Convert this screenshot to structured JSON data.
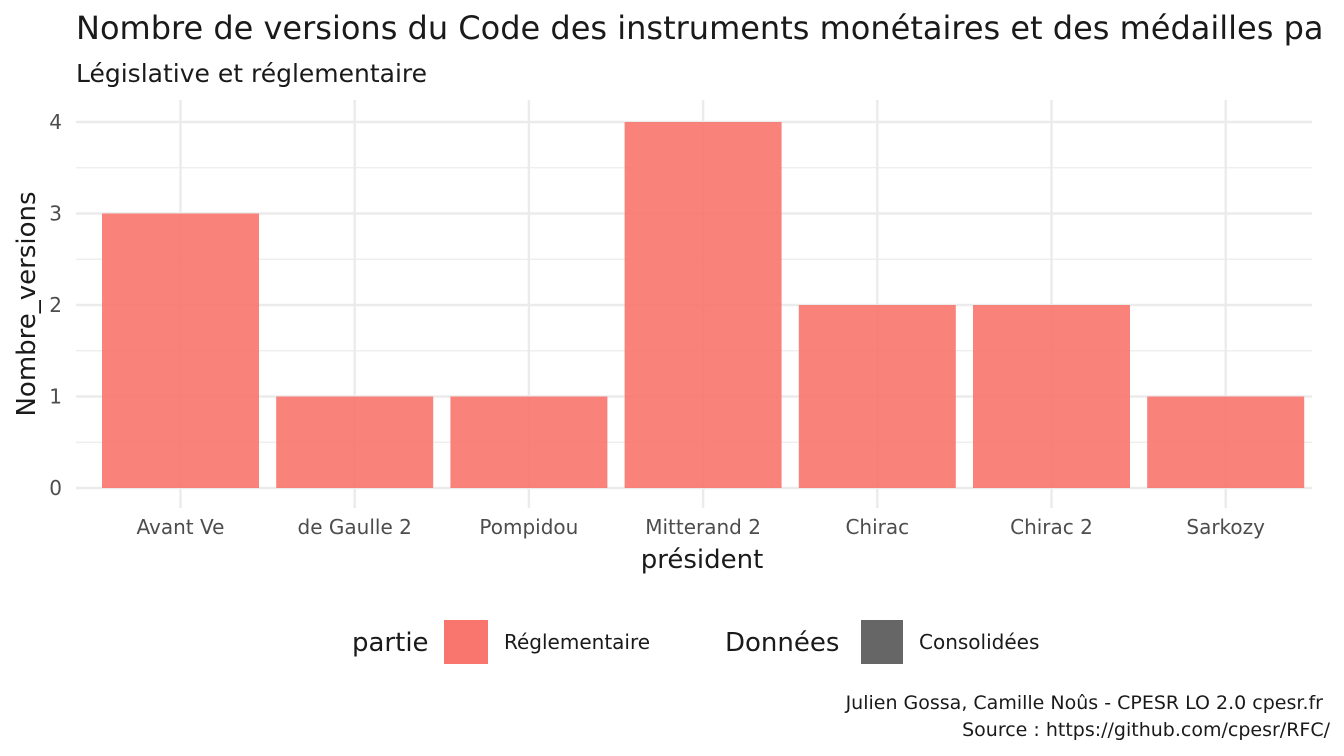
{
  "chart_data": {
    "type": "bar",
    "title": "Nombre de versions du Code des instruments monétaires et des médailles pa",
    "subtitle": "Législative et réglementaire",
    "xlabel": "président",
    "ylabel": "Nombre_versions",
    "categories": [
      "Avant Ve",
      "de Gaulle 2",
      "Pompidou",
      "Mitterand 2",
      "Chirac",
      "Chirac 2",
      "Sarkozy"
    ],
    "series": [
      {
        "name": "Réglementaire",
        "color": "#F8766D",
        "values": [
          3,
          1,
          1,
          4,
          2,
          2,
          1
        ]
      }
    ],
    "ylim": [
      0,
      4
    ],
    "yticks": [
      0,
      1,
      2,
      3,
      4
    ],
    "grid": true,
    "legend_placement": "bottom",
    "legend": [
      {
        "title": "partie",
        "label": "Réglementaire",
        "color": "#F8766D"
      },
      {
        "title": "Données",
        "label": "Consolidées",
        "color": "#666666"
      }
    ],
    "caption": [
      "Julien Gossa, Camille Noûs - CPESR LO 2.0 cpesr.fr",
      "Source : https://github.com/cpesr/RFC/"
    ]
  }
}
